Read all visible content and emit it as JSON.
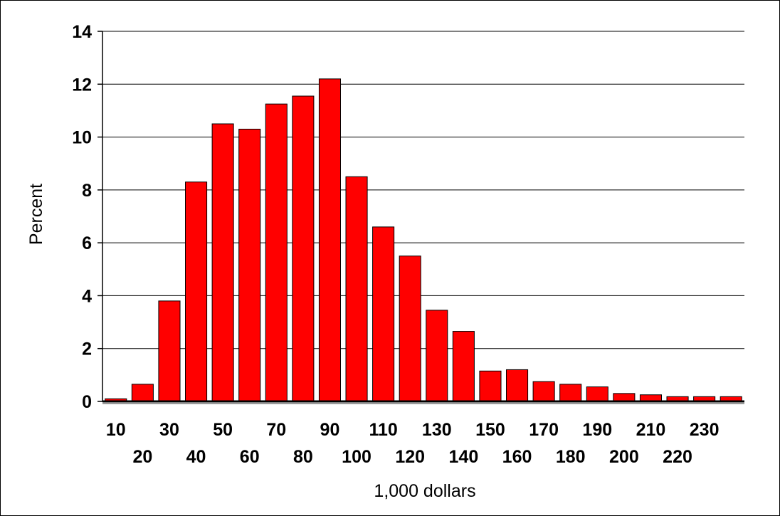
{
  "chart_data": {
    "type": "bar",
    "title": "",
    "xlabel": "1,000 dollars",
    "ylabel": "Percent",
    "ylim": [
      0,
      14
    ],
    "yticks": [
      0,
      2,
      4,
      6,
      8,
      10,
      12,
      14
    ],
    "grid": true,
    "legend": "none",
    "bar_color": "#ff0000",
    "categories": [
      "10",
      "20",
      "30",
      "40",
      "50",
      "60",
      "70",
      "80",
      "90",
      "100",
      "110",
      "120",
      "130",
      "140",
      "150",
      "160",
      "170",
      "180",
      "190",
      "200",
      "210",
      "220",
      "230",
      ""
    ],
    "values": [
      0.1,
      0.65,
      3.8,
      8.3,
      10.5,
      10.3,
      11.25,
      11.55,
      12.2,
      8.5,
      6.6,
      5.5,
      3.45,
      2.65,
      1.15,
      1.2,
      0.75,
      0.65,
      0.55,
      0.3,
      0.25,
      0.18,
      0.18,
      0.18
    ]
  }
}
